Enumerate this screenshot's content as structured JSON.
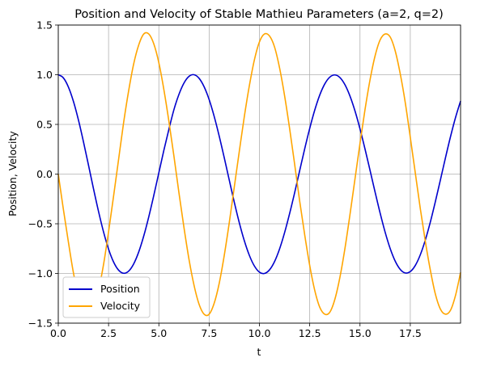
{
  "chart_data": {
    "type": "line",
    "title": "Position and Velocity of Stable Mathieu Parameters (a=2, q=2)",
    "xlabel": "t",
    "ylabel": "Position, Velocity",
    "xlim": [
      0,
      20
    ],
    "ylim": [
      -1.5,
      1.5
    ],
    "xticks": [
      0,
      2.5,
      5,
      7.5,
      10,
      12.5,
      15,
      17.5
    ],
    "xtick_labels": [
      "0.0",
      "2.5",
      "5.0",
      "7.5",
      "10.0",
      "12.5",
      "15.0",
      "17.5"
    ],
    "yticks": [
      -1.5,
      -1.0,
      -0.5,
      0.0,
      0.5,
      1.0,
      1.5
    ],
    "ytick_labels": [
      "−1.5",
      "−1.0",
      "−0.5",
      "0.0",
      "0.5",
      "1.0",
      "1.5"
    ],
    "grid": true,
    "legend_position": "lower-left",
    "series": [
      {
        "name": "Position",
        "color": "#0000cc",
        "x": [
          0,
          0.25,
          0.5,
          0.75,
          1.0,
          1.25,
          1.5,
          1.75,
          2.0,
          2.25,
          2.5,
          2.75,
          3.0,
          3.25,
          3.5,
          3.75,
          4.0,
          4.25,
          4.5,
          4.75,
          5.0,
          5.25,
          5.5,
          5.75,
          6.0,
          6.25,
          6.5,
          6.75,
          7.0,
          7.25,
          7.5,
          7.75,
          8.0,
          8.25,
          8.5,
          8.75,
          9.0,
          9.25,
          9.5,
          9.75,
          10.0,
          10.25,
          10.5,
          10.75,
          11.0,
          11.25,
          11.5,
          11.75,
          12.0,
          12.25,
          12.5,
          12.75,
          13.0,
          13.25,
          13.5,
          13.75,
          14.0,
          14.25,
          14.5,
          14.75,
          15.0,
          15.25,
          15.5,
          15.75,
          16.0,
          16.25,
          16.5,
          16.75,
          17.0,
          17.25,
          17.5,
          17.75,
          18.0,
          18.25,
          18.5,
          18.75,
          19.0,
          19.25,
          19.5,
          19.75,
          20.0
        ],
        "y": [
          1.0,
          0.969,
          0.878,
          0.734,
          0.546,
          0.327,
          0.092,
          -0.147,
          -0.375,
          -0.582,
          -0.755,
          -0.885,
          -0.967,
          -0.998,
          -0.976,
          -0.903,
          -0.783,
          -0.622,
          -0.429,
          -0.213,
          0.014,
          0.24,
          0.452,
          0.649,
          0.803,
          0.917,
          0.984,
          1.0,
          0.964,
          0.879,
          0.75,
          0.581,
          0.383,
          0.166,
          -0.06,
          -0.283,
          -0.49,
          -0.671,
          -0.818,
          -0.925,
          -0.987,
          -1.0,
          -0.964,
          -0.881,
          -0.754,
          -0.59,
          -0.398,
          -0.188,
          0.034,
          0.254,
          0.46,
          0.644,
          0.796,
          0.908,
          0.976,
          0.998,
          0.972,
          0.9,
          0.786,
          0.636,
          0.455,
          0.252,
          0.037,
          -0.181,
          -0.392,
          -0.585,
          -0.749,
          -0.876,
          -0.959,
          -0.995,
          -0.981,
          -0.919,
          -0.811,
          -0.662,
          -0.48,
          -0.274,
          -0.056,
          0.165,
          0.377,
          0.57,
          0.735
        ]
      },
      {
        "name": "Velocity",
        "color": "#ffa500",
        "x": [
          0,
          0.25,
          0.5,
          0.75,
          1.0,
          1.25,
          1.5,
          1.75,
          2.0,
          2.25,
          2.5,
          2.75,
          3.0,
          3.25,
          3.5,
          3.75,
          4.0,
          4.25,
          4.5,
          4.75,
          5.0,
          5.25,
          5.5,
          5.75,
          6.0,
          6.25,
          6.5,
          6.75,
          7.0,
          7.25,
          7.5,
          7.75,
          8.0,
          8.25,
          8.5,
          8.75,
          9.0,
          9.25,
          9.5,
          9.75,
          10.0,
          10.25,
          10.5,
          10.75,
          11.0,
          11.25,
          11.5,
          11.75,
          12.0,
          12.25,
          12.5,
          12.75,
          13.0,
          13.25,
          13.5,
          13.75,
          14.0,
          14.25,
          14.5,
          14.75,
          15.0,
          15.25,
          15.5,
          15.75,
          16.0,
          16.25,
          16.5,
          16.75,
          17.0,
          17.25,
          17.5,
          17.75,
          18.0,
          18.25,
          18.5,
          18.75,
          19.0,
          19.25,
          19.5,
          19.75,
          20.0
        ],
        "y": [
          0.0,
          -0.35,
          -0.68,
          -0.99,
          -1.23,
          -1.37,
          -1.41,
          -1.34,
          -1.17,
          -0.91,
          -0.58,
          -0.22,
          0.15,
          0.52,
          0.84,
          1.11,
          1.3,
          1.41,
          1.41,
          1.31,
          1.12,
          0.85,
          0.53,
          0.18,
          -0.19,
          -0.54,
          -0.86,
          -1.12,
          -1.31,
          -1.41,
          -1.41,
          -1.3,
          -1.1,
          -0.82,
          -0.49,
          -0.13,
          0.23,
          0.58,
          0.89,
          1.15,
          1.33,
          1.41,
          1.39,
          1.28,
          1.07,
          0.79,
          0.46,
          0.1,
          -0.27,
          -0.61,
          -0.92,
          -1.17,
          -1.34,
          -1.41,
          -1.39,
          -1.26,
          -1.04,
          -0.75,
          -0.41,
          -0.05,
          0.31,
          0.65,
          0.95,
          1.19,
          1.35,
          1.41,
          1.38,
          1.24,
          1.01,
          0.72,
          0.37,
          0.01,
          -0.35,
          -0.68,
          -0.97,
          -1.21,
          -1.36,
          -1.41,
          -1.37,
          -1.22,
          -0.99
        ]
      }
    ]
  }
}
